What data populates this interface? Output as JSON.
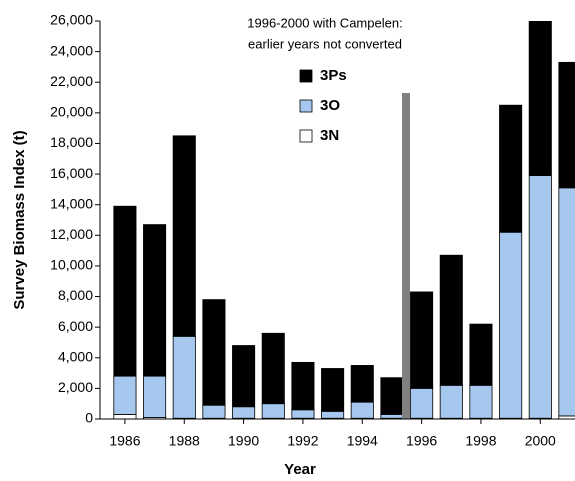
{
  "chart_data": {
    "type": "stacked_bar",
    "annotation": [
      "1996-2000 with Campelen:",
      "earlier years not converted"
    ],
    "x_label": "Year",
    "y_label": "Survey Biomass Index (t)",
    "x": [
      1986,
      1987,
      1988,
      1989,
      1990,
      1991,
      1992,
      1993,
      1994,
      1995,
      1996,
      1997,
      1998,
      1999,
      2000,
      2001
    ],
    "series": [
      {
        "name": "3N",
        "color": "#ffffff",
        "values": [
          300,
          100,
          50,
          50,
          50,
          50,
          50,
          50,
          50,
          50,
          50,
          50,
          50,
          50,
          50,
          200
        ]
      },
      {
        "name": "3O",
        "color": "#a6c8ee",
        "values": [
          2500,
          2700,
          5350,
          850,
          750,
          950,
          550,
          450,
          1050,
          250,
          1950,
          2150,
          2150,
          12150,
          15850,
          14900
        ]
      },
      {
        "name": "3Ps",
        "color": "#000000",
        "values": [
          11100,
          9900,
          13100,
          6900,
          4000,
          4600,
          3100,
          2800,
          2400,
          2400,
          6300,
          8500,
          4000,
          8300,
          10300,
          8200
        ]
      }
    ],
    "xlim": [
      1985.16,
      2001.17
    ],
    "xticks": [
      1986,
      1988,
      1990,
      1992,
      1994,
      1996,
      1998,
      2000
    ],
    "ylim": [
      0,
      26000
    ],
    "yticks": [
      0,
      {
        "value": 2000,
        "label": "2,000"
      },
      {
        "value": 4000,
        "label": "4,000"
      },
      {
        "value": 6000,
        "label": "6,000"
      },
      {
        "value": 8000,
        "label": "8,000"
      },
      {
        "value": 10000,
        "label": "10,000"
      },
      {
        "value": 12000,
        "label": "12,000"
      },
      {
        "value": 14000,
        "label": "14,000"
      },
      {
        "value": 16000,
        "label": "16,000"
      },
      {
        "value": 18000,
        "label": "18,000"
      },
      {
        "value": 20000,
        "label": "20,000"
      },
      {
        "value": 22000,
        "label": "22,000"
      },
      {
        "value": 24000,
        "label": "24,000"
      },
      {
        "value": {
          "value": 26000
        },
        "label": "26,000"
      }
    ]
  }
}
